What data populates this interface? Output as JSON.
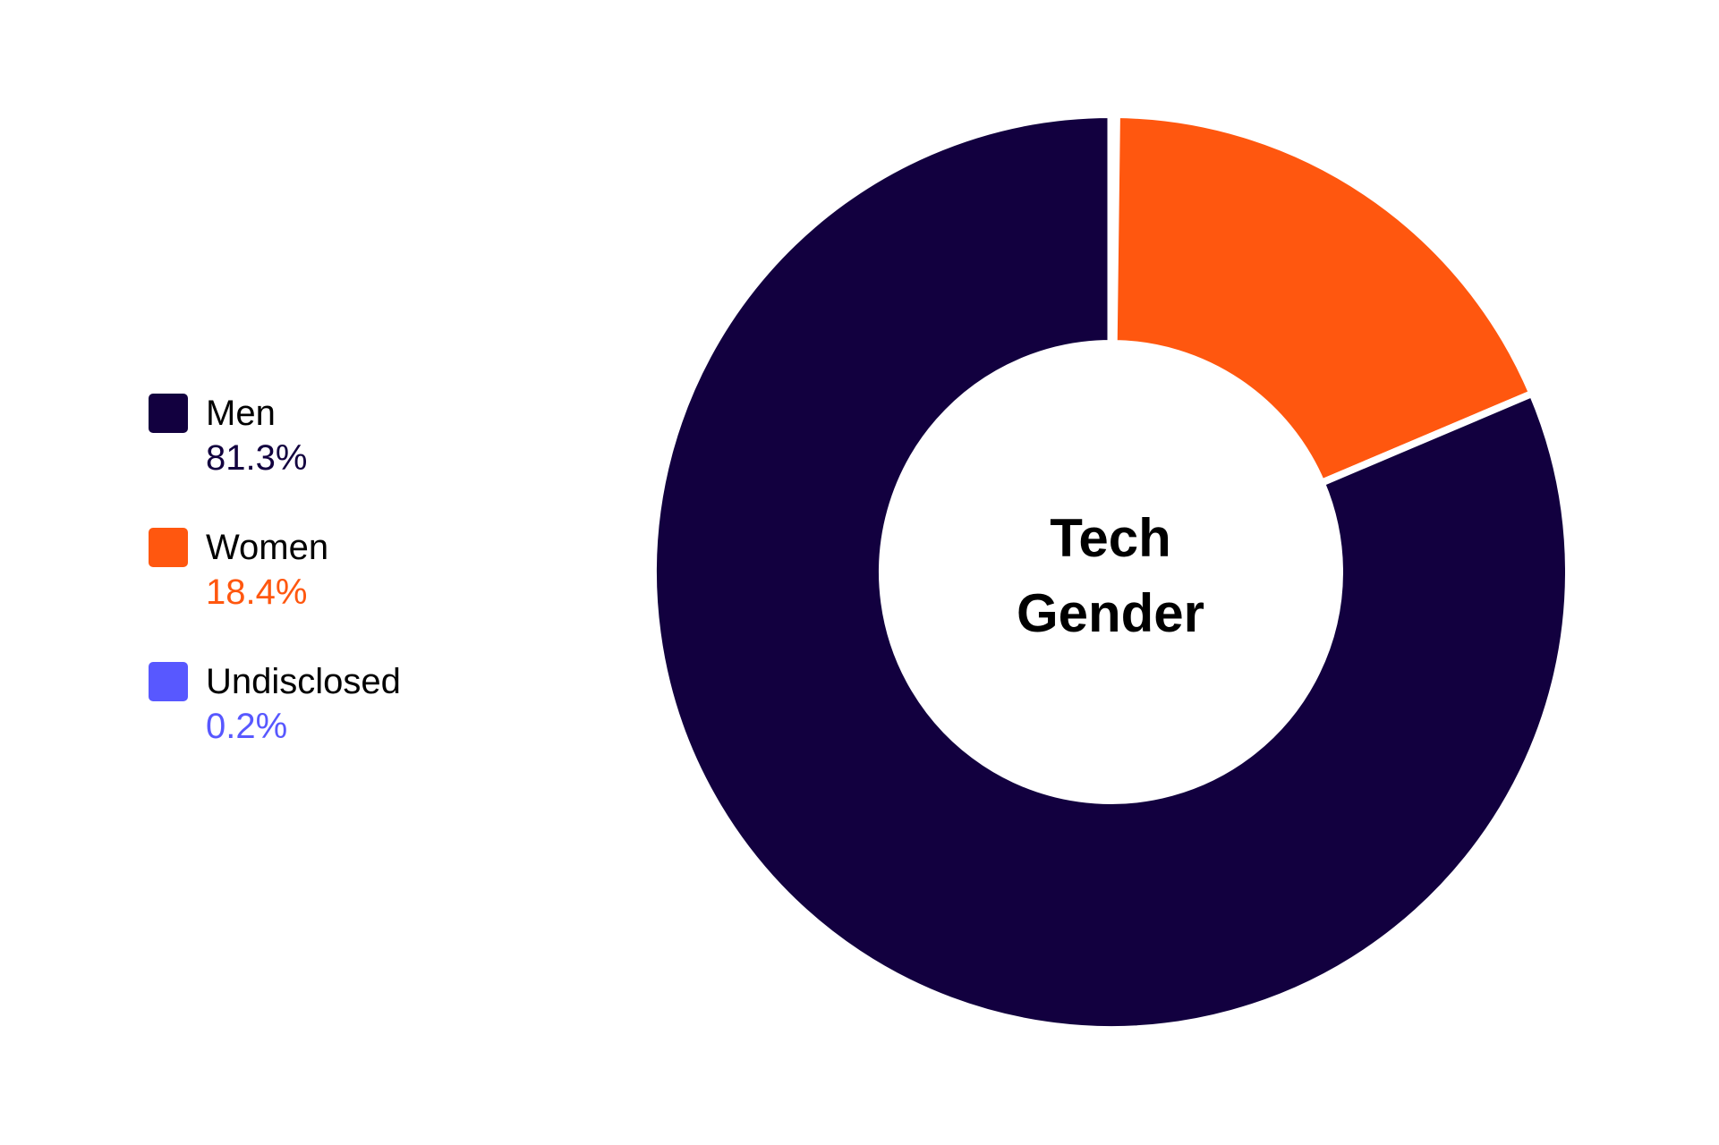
{
  "chart_data": {
    "type": "pie",
    "subtype": "donut",
    "title": "Tech Gender",
    "categories": [
      "Men",
      "Women",
      "Undisclosed"
    ],
    "values": [
      81.3,
      18.4,
      0.2
    ],
    "value_labels": [
      "81.3%",
      "18.4%",
      "0.2%"
    ],
    "colors": [
      "#12003F",
      "#FF570F",
      "#5858FF"
    ],
    "legend_position": "left",
    "start_angle": "12 o'clock, clockwise order: Undisclosed, Women, Men"
  },
  "center_label": {
    "line1": "Tech",
    "line2": "Gender"
  },
  "legend": {
    "items": [
      {
        "label": "Men",
        "value": "81.3%",
        "color": "#12003F"
      },
      {
        "label": "Women",
        "value": "18.4%",
        "color": "#FF570F"
      },
      {
        "label": "Undisclosed",
        "value": "0.2%",
        "color": "#5858FF"
      }
    ]
  }
}
